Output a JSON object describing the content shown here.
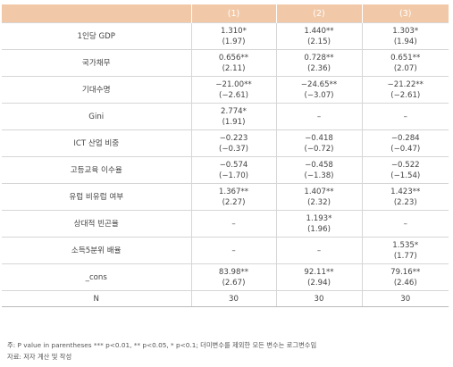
{
  "table": {
    "headers": [
      "",
      "(1)",
      "(2)",
      "(3)"
    ],
    "rows": [
      {
        "label": "1인당 GDP",
        "cells": [
          [
            "1.310*",
            "(1.97)"
          ],
          [
            "1.440**",
            "(2.15)"
          ],
          [
            "1.303*",
            "(1.94)"
          ]
        ]
      },
      {
        "label": "국가채무",
        "cells": [
          [
            "0.656**",
            "(2.11)"
          ],
          [
            "0.728**",
            "(2.36)"
          ],
          [
            "0.651**",
            "(2.07)"
          ]
        ]
      },
      {
        "label": "기대수명",
        "cells": [
          [
            "−21.00**",
            "(−2.61)"
          ],
          [
            "−24.65**",
            "(−3.07)"
          ],
          [
            "−21.22**",
            "(−2.61)"
          ]
        ]
      },
      {
        "label": "Gini",
        "cells": [
          [
            "2.774*",
            "(1.91)"
          ],
          [
            "–",
            ""
          ],
          [
            "–",
            ""
          ]
        ]
      },
      {
        "label": "ICT 산업 비중",
        "cells": [
          [
            "−0.223",
            "(−0.37)"
          ],
          [
            "−0.418",
            "(−0.72)"
          ],
          [
            "−0.284",
            "(−0.47)"
          ]
        ]
      },
      {
        "label": "고등교육 이수율",
        "cells": [
          [
            "−0.574",
            "(−1.70)"
          ],
          [
            "−0.458",
            "(−1.38)"
          ],
          [
            "−0.522",
            "(−1.54)"
          ]
        ]
      },
      {
        "label": "유럽 비유럽 여부",
        "cells": [
          [
            "1.367**",
            "(2.27)"
          ],
          [
            "1.407**",
            "(2.32)"
          ],
          [
            "1.423**",
            "(2.23)"
          ]
        ]
      },
      {
        "label": "상대적 빈곤율",
        "cells": [
          [
            "–",
            ""
          ],
          [
            "1.193*",
            "(1.96)"
          ],
          [
            "–",
            ""
          ]
        ]
      },
      {
        "label": "소득5분위 배율",
        "cells": [
          [
            "–",
            ""
          ],
          [
            "–",
            ""
          ],
          [
            "1.535*",
            "(1.77)"
          ]
        ]
      },
      {
        "label": "_cons",
        "cells": [
          [
            "83.98**",
            "(2.67)"
          ],
          [
            "92.11**",
            "(2.94)"
          ],
          [
            "79.16**",
            "(2.46)"
          ]
        ]
      },
      {
        "label": "N",
        "cells": [
          [
            "30",
            ""
          ],
          [
            "30",
            ""
          ],
          [
            "30",
            ""
          ]
        ]
      }
    ]
  },
  "notes": {
    "line1": "주: P value in parentheses *** p<0.01, ** p<0.05, * p<0.1; 더미변수를 제외한 모든 변수는 로그변수임",
    "line2": "자료: 저자 계산 및 작성"
  }
}
